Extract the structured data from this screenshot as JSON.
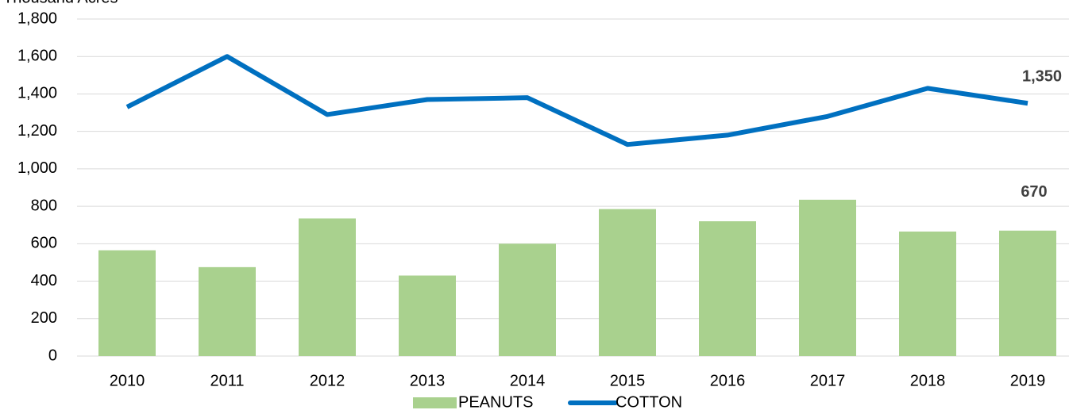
{
  "chart_data": {
    "type": "combo",
    "y_label": "Thousand Acres",
    "categories": [
      "2010",
      "2011",
      "2012",
      "2013",
      "2014",
      "2015",
      "2016",
      "2017",
      "2018",
      "2019"
    ],
    "series": [
      {
        "name": "PEANUTS",
        "type": "bar",
        "color": "#a9d18e",
        "values": [
          565,
          475,
          735,
          430,
          600,
          785,
          720,
          835,
          665,
          670
        ]
      },
      {
        "name": "COTTON",
        "type": "line",
        "color": "#0070c0",
        "values": [
          1330,
          1600,
          1290,
          1370,
          1380,
          1130,
          1180,
          1280,
          1430,
          1350
        ],
        "value_labels": [
          null,
          null,
          null,
          null,
          null,
          null,
          null,
          null,
          null,
          "1,350"
        ]
      }
    ],
    "ylim": [
      0,
      1800
    ],
    "yticks": [
      0,
      200,
      400,
      600,
      800,
      {
        "value": 1000,
        "label": "1,000"
      },
      {
        "value": 1200,
        "label": "1,200"
      },
      {
        "value": 1400,
        "label": "1,400"
      },
      {
        "value": 1600,
        "label": "1,600"
      },
      {
        "value": 1800,
        "label": "1,800"
      }
    ],
    "grid": true,
    "legend": "bottom"
  }
}
